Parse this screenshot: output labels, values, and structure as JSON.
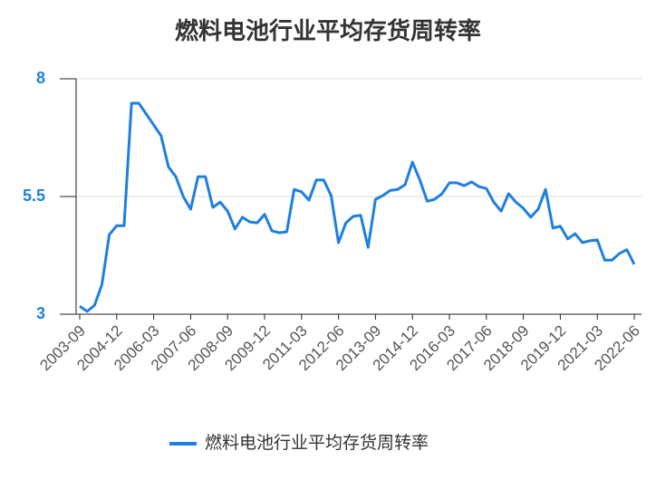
{
  "chart_data": {
    "type": "line",
    "title": "燃料电池行业平均存货周转率",
    "categories": [
      "2003-09",
      null,
      null,
      null,
      null,
      "2004-12",
      null,
      null,
      null,
      null,
      "2006-03",
      null,
      null,
      null,
      null,
      "2007-06",
      null,
      null,
      null,
      null,
      "2008-09",
      null,
      null,
      null,
      null,
      "2009-12",
      null,
      null,
      null,
      null,
      "2011-03",
      null,
      null,
      null,
      null,
      "2012-06",
      null,
      null,
      null,
      null,
      "2013-09",
      null,
      null,
      null,
      null,
      "2014-12",
      null,
      null,
      null,
      null,
      "2016-03",
      null,
      null,
      null,
      null,
      "2017-06",
      null,
      null,
      null,
      null,
      "2018-09",
      null,
      null,
      null,
      null,
      "2019-12",
      null,
      null,
      null,
      null,
      "2021-03",
      null,
      null,
      null,
      null,
      "2022-06"
    ],
    "series": [
      {
        "name": "燃料电池行业平均存货周转率",
        "color": "#1f7fe0",
        "values": [
          3.17,
          3.06,
          3.19,
          3.63,
          4.69,
          4.88,
          4.88,
          7.48,
          7.48,
          7.25,
          7.02,
          6.79,
          6.13,
          5.92,
          5.5,
          5.23,
          5.92,
          5.92,
          5.27,
          5.38,
          5.19,
          4.81,
          5.06,
          4.96,
          4.94,
          5.12,
          4.77,
          4.73,
          4.75,
          5.65,
          5.6,
          5.42,
          5.85,
          5.85,
          5.52,
          4.52,
          4.94,
          5.08,
          5.1,
          4.42,
          5.44,
          5.52,
          5.63,
          5.65,
          5.75,
          6.23,
          5.85,
          5.4,
          5.44,
          5.56,
          5.79,
          5.79,
          5.73,
          5.81,
          5.71,
          5.67,
          5.38,
          5.19,
          5.56,
          5.38,
          5.25,
          5.06,
          5.23,
          5.65,
          4.83,
          4.87,
          4.6,
          4.71,
          4.52,
          4.56,
          4.58,
          4.15,
          4.15,
          4.29,
          4.37,
          4.06
        ]
      }
    ],
    "ylim": [
      3,
      8
    ],
    "yticks": [
      3,
      5.5,
      8
    ],
    "grid": true
  }
}
